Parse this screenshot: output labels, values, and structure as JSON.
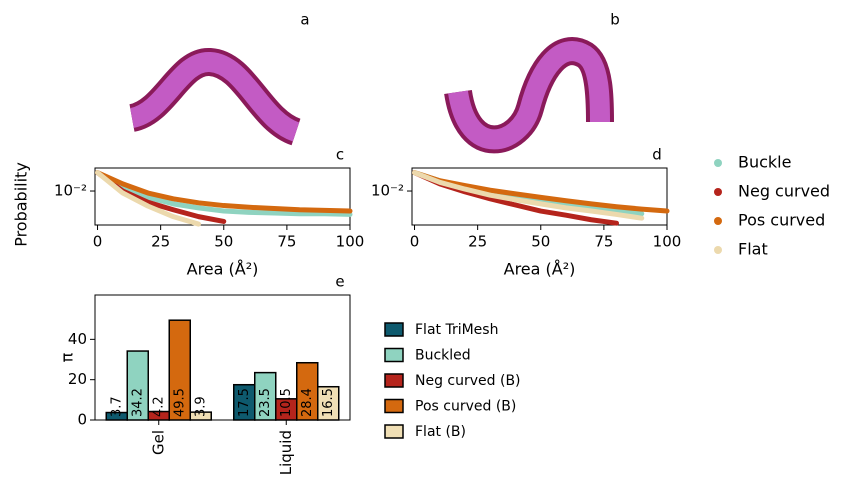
{
  "image_panels": [
    {
      "label": "a"
    },
    {
      "label": "b"
    }
  ],
  "chart_data": [
    {
      "type": "line",
      "label": "c",
      "ylabel": "Probability",
      "xlabel": "Area (Å²)",
      "yscale": "log",
      "x": [
        0,
        10,
        20,
        30,
        40,
        50,
        60,
        70,
        80,
        90,
        100
      ],
      "xlim": [
        -1,
        100
      ],
      "xticks": [
        0,
        25,
        50,
        75,
        100
      ],
      "ylim": [
        0.0042,
        0.018
      ],
      "yticks": [
        {
          "value": 0.01,
          "label": "10⁻²"
        }
      ],
      "series": [
        {
          "name": "Buckle",
          "color": "#8fd3c0",
          "values": [
            0.016,
            0.011,
            0.0085,
            0.0072,
            0.0065,
            0.006,
            0.0058,
            0.0057,
            0.0056,
            0.0056,
            0.0055
          ]
        },
        {
          "name": "Neg curved",
          "color": "#b5241c",
          "values": [
            0.016,
            0.01,
            0.0075,
            0.0062,
            0.0052,
            0.0046,
            null,
            null,
            null,
            null,
            null
          ]
        },
        {
          "name": "Pos curved",
          "color": "#d4690f",
          "values": [
            0.016,
            0.012,
            0.0095,
            0.0082,
            0.0074,
            0.0069,
            0.0066,
            0.0064,
            0.0062,
            0.0061,
            0.006
          ]
        },
        {
          "name": "Flat",
          "color": "#ecd9ad",
          "values": [
            0.016,
            0.0095,
            0.0068,
            0.0052,
            0.0043,
            null,
            null,
            null,
            null,
            null,
            null
          ]
        }
      ]
    },
    {
      "type": "line",
      "label": "d",
      "xlabel": "Area (Å²)",
      "yscale": "log",
      "x": [
        0,
        10,
        20,
        30,
        40,
        50,
        60,
        70,
        80,
        90,
        100
      ],
      "xlim": [
        -1,
        100
      ],
      "xticks": [
        0,
        25,
        50,
        75,
        100
      ],
      "ylim": [
        0.0042,
        0.018
      ],
      "yticks": [
        {
          "value": 0.01,
          "label": "10⁻²"
        }
      ],
      "series": [
        {
          "color": "#8fd3c0",
          "values": [
            0.016,
            0.013,
            0.011,
            0.0095,
            0.0085,
            0.0077,
            0.007,
            0.0064,
            0.006,
            0.0056,
            null
          ]
        },
        {
          "color": "#b5241c",
          "values": [
            0.016,
            0.012,
            0.0098,
            0.0082,
            0.007,
            0.006,
            0.0054,
            0.0048,
            0.0044,
            null,
            null
          ]
        },
        {
          "color": "#d4690f",
          "values": [
            0.016,
            0.013,
            0.0115,
            0.0102,
            0.0093,
            0.0085,
            0.0078,
            0.0072,
            0.0067,
            0.0063,
            0.006
          ]
        },
        {
          "color": "#ecd9ad",
          "values": [
            0.016,
            0.0125,
            0.0105,
            0.009,
            0.008,
            0.0072,
            0.0065,
            0.006,
            0.0055,
            0.005,
            null
          ]
        }
      ]
    },
    {
      "type": "bar",
      "label": "e",
      "ylabel": "π",
      "categories": [
        "Gel",
        "Liquid"
      ],
      "ylim": [
        0,
        62
      ],
      "yticks": [
        0,
        20,
        40
      ],
      "series": [
        {
          "name": "Flat TriMesh",
          "color": "#0e5a6e",
          "values": [
            3.7,
            17.5
          ]
        },
        {
          "name": "Buckled",
          "color": "#8fd3c0",
          "values": [
            34.2,
            23.5
          ]
        },
        {
          "name": "Neg curved (B)",
          "color": "#b5241c",
          "values": [
            4.2,
            10.5
          ]
        },
        {
          "name": "Pos curved (B)",
          "color": "#d4690f",
          "values": [
            49.5,
            28.4
          ]
        },
        {
          "name": "Flat (B)",
          "color": "#f0dfb5",
          "values": [
            3.9,
            16.5
          ]
        }
      ]
    }
  ]
}
